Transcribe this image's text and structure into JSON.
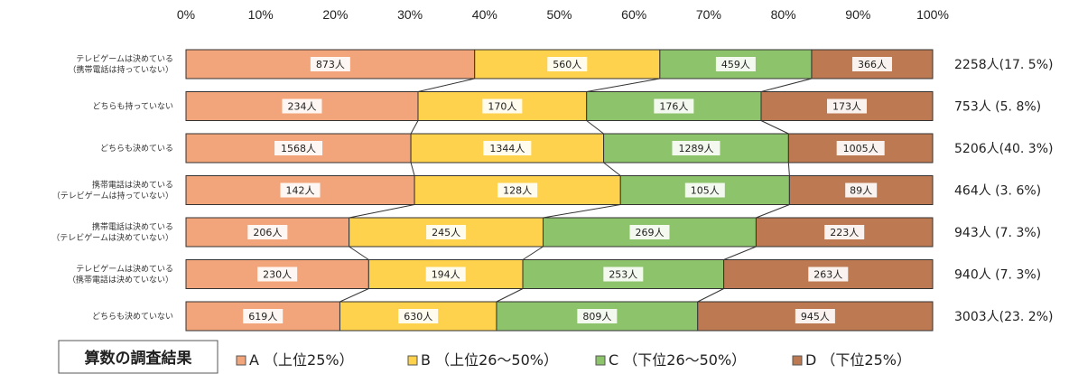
{
  "chart_data": {
    "type": "bar",
    "orientation": "horizontal",
    "stacked": "percent",
    "xlim": [
      0,
      100
    ],
    "x_ticks": [
      "0%",
      "10%",
      "20%",
      "30%",
      "40%",
      "50%",
      "60%",
      "70%",
      "80%",
      "90%",
      "100%"
    ],
    "categories": [
      [
        "テレビゲームは決めている",
        "（携帯電話は持っていない）"
      ],
      [
        "どちらも持っていない"
      ],
      [
        "どちらも決めている"
      ],
      [
        "携帯電話は決めている",
        "（テレビゲームは持っていない）"
      ],
      [
        "携帯電話は決めている",
        "（テレビゲームは決めていない）"
      ],
      [
        "テレビゲームは決めている",
        "（携帯電話は決めていない）"
      ],
      [
        "どちらも決めていない"
      ]
    ],
    "series": [
      {
        "name": "A （上位25%）",
        "color": "#f2a57b",
        "values": [
          873,
          234,
          1568,
          142,
          206,
          230,
          619
        ],
        "labels": [
          "873人",
          "234人",
          "1568人",
          "142人",
          "206人",
          "230人",
          "619人"
        ]
      },
      {
        "name": "B （上位26～50%）",
        "color": "#ffd24d",
        "values": [
          560,
          170,
          1344,
          128,
          245,
          194,
          630
        ],
        "labels": [
          "560人",
          "170人",
          "1344人",
          "128人",
          "245人",
          "194人",
          "630人"
        ]
      },
      {
        "name": "C （下位26～50%）",
        "color": "#8cc36b",
        "values": [
          459,
          176,
          1289,
          105,
          269,
          253,
          809
        ],
        "labels": [
          "459人",
          "176人",
          "1289人",
          "105人",
          "269人",
          "253人",
          "809人"
        ]
      },
      {
        "name": "D （下位25%）",
        "color": "#bd7a52",
        "values": [
          366,
          173,
          1005,
          89,
          223,
          263,
          945
        ],
        "labels": [
          "366人",
          "173人",
          "1005人",
          "89人",
          "223人",
          "263人",
          "945人"
        ]
      }
    ],
    "totals": [
      "2258人(17. 5%)",
      "753人  (5. 8%)",
      "5206人(40. 3%)",
      "464人  (3. 6%)",
      "943人  (7. 3%)",
      "940人  (7. 3%)",
      "3003人(23. 2%)"
    ],
    "connector_lines": true,
    "legend": {
      "title": "算数の調査結果",
      "position": "bottom"
    }
  }
}
